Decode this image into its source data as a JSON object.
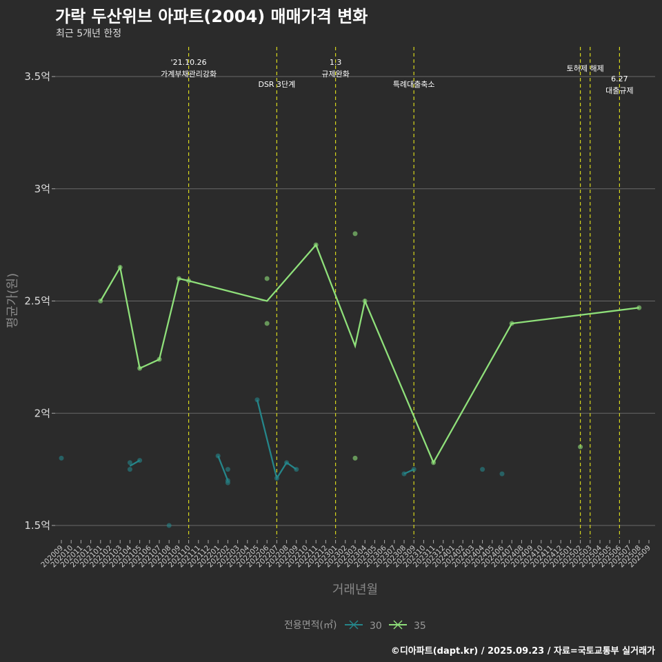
{
  "header": {
    "title": "가락 두산위브 아파트(2004) 매매가격 변화",
    "subtitle": "최근 5개년 한정"
  },
  "footer": "©디아파트(dapt.kr) / 2025.09.23 / 자료=국토교통부 실거래가",
  "colors": {
    "bg": "#2b2b2b",
    "s30": "#25868a",
    "s35": "#8fe07a",
    "event": "#d8d81c",
    "grid": "#6a6a6a"
  },
  "chart_data": {
    "type": "line",
    "xlabel": "거래년월",
    "ylabel": "평균가(원)",
    "ylim": [
      1.4,
      3.6
    ],
    "yticks": [
      {
        "v": 1.5,
        "label": "1.5억"
      },
      {
        "v": 2,
        "label": "2억"
      },
      {
        "v": 2.5,
        "label": "2.5억"
      },
      {
        "v": 3,
        "label": "3억"
      },
      {
        "v": 3.5,
        "label": "3.5억"
      }
    ],
    "months": [
      "202009",
      "202010",
      "202011",
      "202012",
      "202101",
      "202102",
      "202103",
      "202104",
      "202105",
      "202106",
      "202107",
      "202108",
      "202109",
      "202110",
      "202111",
      "202112",
      "202201",
      "202202",
      "202203",
      "202204",
      "202205",
      "202206",
      "202207",
      "202208",
      "202209",
      "202210",
      "202211",
      "202212",
      "202301",
      "202302",
      "202303",
      "202304",
      "202305",
      "202306",
      "202307",
      "202308",
      "202309",
      "202310",
      "202311",
      "202312",
      "202401",
      "202402",
      "202403",
      "202404",
      "202405",
      "202406",
      "202407",
      "202408",
      "202409",
      "202410",
      "202411",
      "202412",
      "202501",
      "202502",
      "202503",
      "202504",
      "202505",
      "202506",
      "202507",
      "202508",
      "202509"
    ],
    "legend": {
      "title": "전용면적(㎡)",
      "position": "bottom"
    },
    "series": [
      {
        "name": "30",
        "color_key": "s30",
        "line": [
          [
            "202009",
            1.8
          ],
          [
            "202104",
            1.765
          ],
          [
            "202105",
            1.79
          ],
          [
            "202108",
            1.5
          ],
          [
            "202201",
            1.81
          ],
          [
            "202202",
            1.7
          ],
          [
            "202205",
            2.06
          ],
          [
            "202207",
            1.71
          ],
          [
            "202208",
            1.78
          ],
          [
            "202209",
            1.75
          ],
          [
            "202308",
            1.73
          ],
          [
            "202309",
            1.75
          ],
          [
            "202404",
            1.75
          ],
          [
            "202406",
            1.73
          ]
        ],
        "points": [
          [
            "202009",
            1.8
          ],
          [
            "202104",
            1.78
          ],
          [
            "202104",
            1.75
          ],
          [
            "202105",
            1.79
          ],
          [
            "202108",
            1.5
          ],
          [
            "202201",
            1.81
          ],
          [
            "202202",
            1.75
          ],
          [
            "202202",
            1.7
          ],
          [
            "202202",
            1.69
          ],
          [
            "202205",
            2.06
          ],
          [
            "202207",
            1.71
          ],
          [
            "202208",
            1.78
          ],
          [
            "202209",
            1.75
          ],
          [
            "202308",
            1.73
          ],
          [
            "202309",
            1.75
          ],
          [
            "202404",
            1.75
          ],
          [
            "202406",
            1.73
          ]
        ],
        "segments_break_after": [
          "202009",
          "202105",
          "202108",
          "202202",
          "202209",
          "202309",
          "202404"
        ]
      },
      {
        "name": "35",
        "color_key": "s35",
        "line": [
          [
            "202101",
            2.5
          ],
          [
            "202103",
            2.65
          ],
          [
            "202105",
            2.2
          ],
          [
            "202107",
            2.24
          ],
          [
            "202109",
            2.6
          ],
          [
            "202110",
            2.59
          ],
          [
            "202206",
            2.5
          ],
          [
            "202211",
            2.75
          ],
          [
            "202303",
            2.3
          ],
          [
            "202304",
            2.5
          ],
          [
            "202311",
            1.78
          ],
          [
            "202407",
            2.4
          ],
          [
            "202508",
            2.47
          ]
        ],
        "points": [
          [
            "202101",
            2.5
          ],
          [
            "202103",
            2.65
          ],
          [
            "202105",
            2.2
          ],
          [
            "202107",
            2.24
          ],
          [
            "202109",
            2.6
          ],
          [
            "202110",
            2.59
          ],
          [
            "202206",
            2.6
          ],
          [
            "202206",
            2.4
          ],
          [
            "202211",
            2.75
          ],
          [
            "202303",
            2.8
          ],
          [
            "202303",
            1.8
          ],
          [
            "202304",
            2.5
          ],
          [
            "202311",
            1.78
          ],
          [
            "202407",
            2.4
          ],
          [
            "202502",
            1.85
          ],
          [
            "202508",
            2.47
          ]
        ]
      }
    ],
    "events": [
      {
        "month": "202110",
        "lines": [
          "'21.10.26",
          "가계부채관리강화"
        ],
        "row": 0
      },
      {
        "month": "202207",
        "lines": [
          "DSR 3단계"
        ],
        "row": 1
      },
      {
        "month": "202301",
        "lines": [
          "1.3",
          "규제완화"
        ],
        "row": 0
      },
      {
        "month": "202309",
        "lines": [
          "특례대출축소"
        ],
        "row": 1
      },
      {
        "month": "202502",
        "lines": [
          "토허제 해제"
        ],
        "row": 0,
        "span_to": "202503"
      },
      {
        "month": "202503",
        "lines": [],
        "row": 0
      },
      {
        "month": "202506",
        "lines": [
          "6.27",
          "대출규제"
        ],
        "row": 1
      }
    ]
  }
}
